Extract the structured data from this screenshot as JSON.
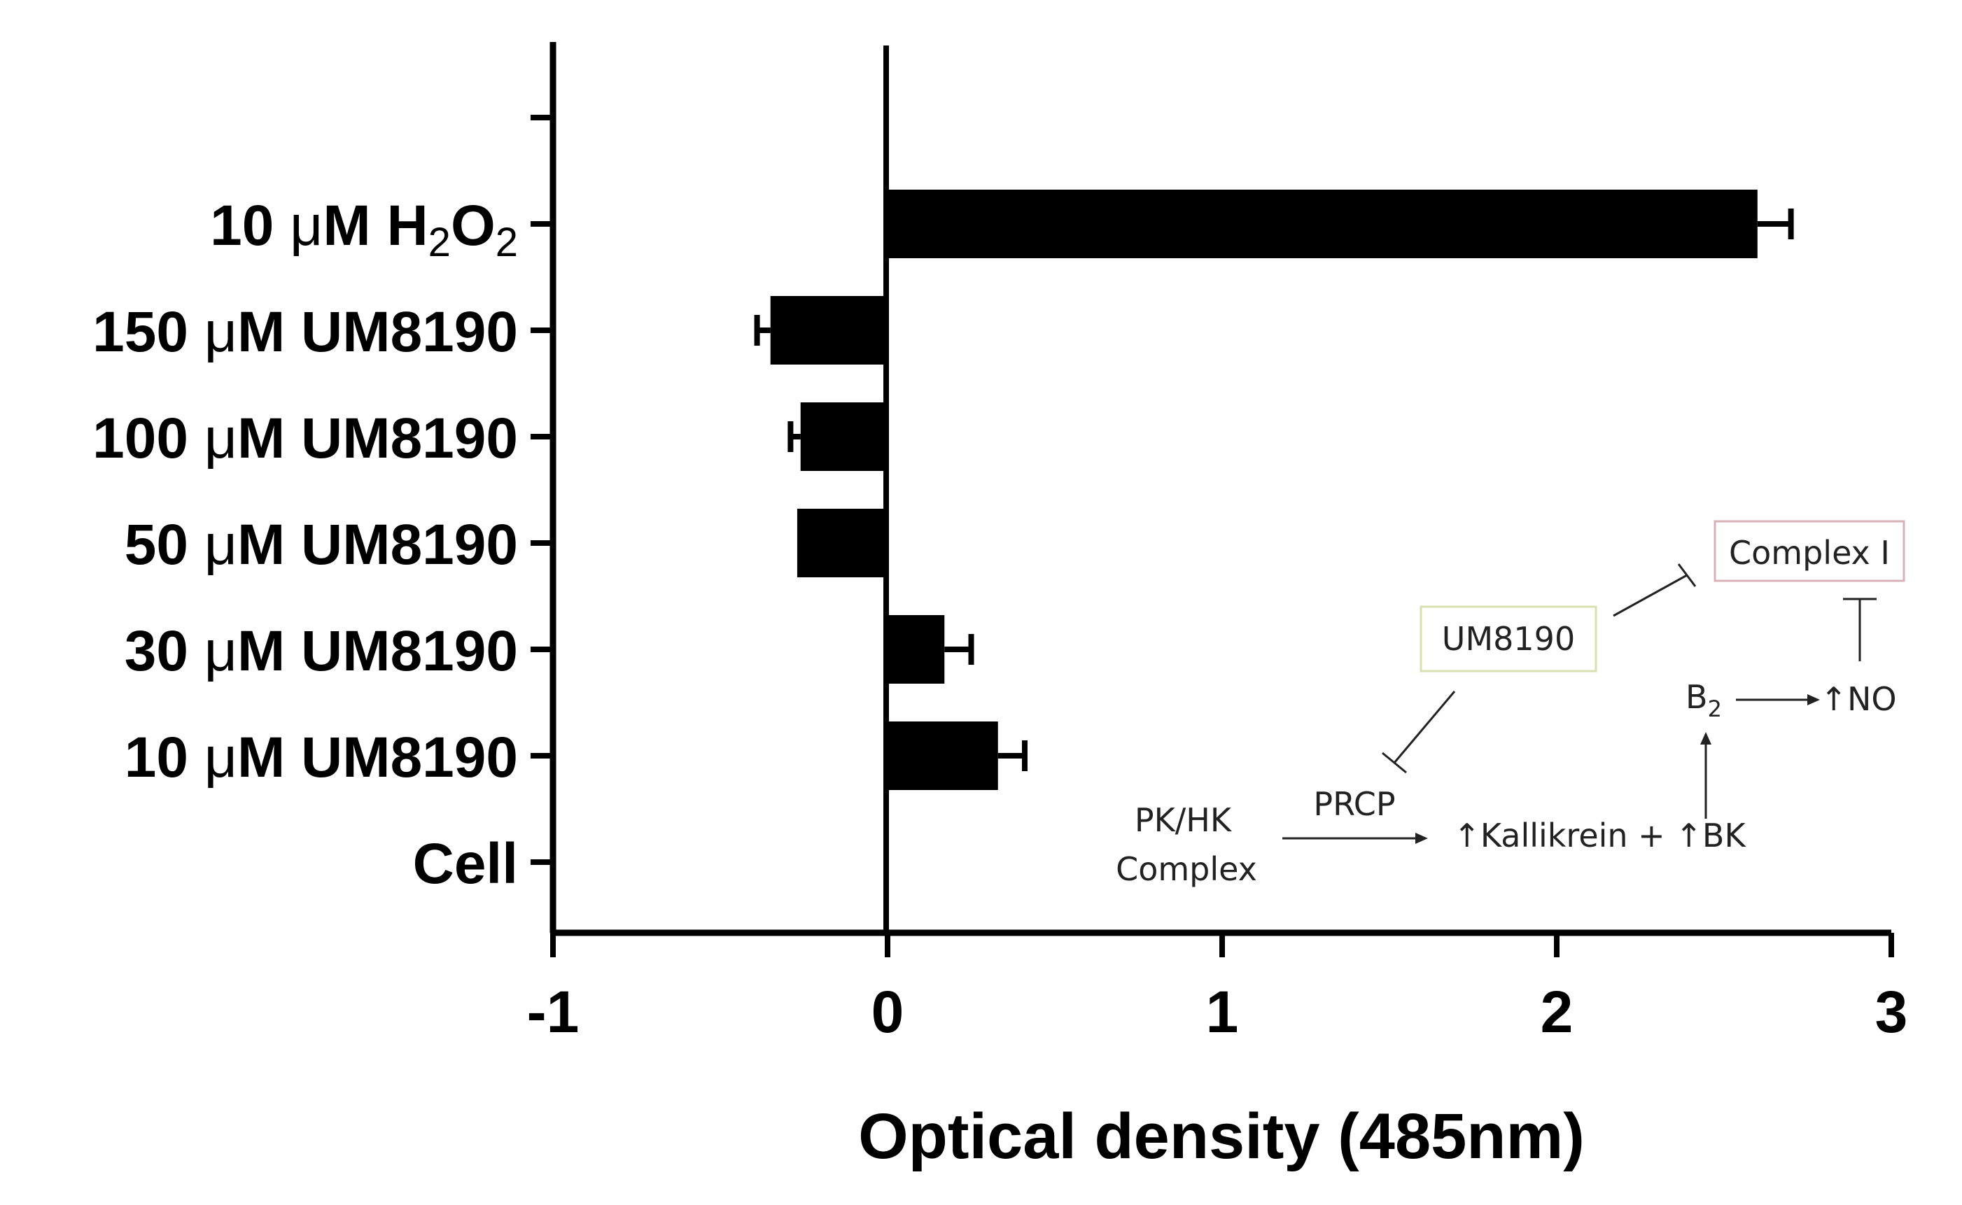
{
  "chart_data": {
    "type": "bar",
    "orientation": "horizontal",
    "xlabel": "Optical density (485nm)",
    "xlim": [
      -1,
      3
    ],
    "x_ticks": [
      "-1",
      "0",
      "1",
      "2",
      "3"
    ],
    "categories": [
      {
        "prefix": "10 ",
        "mu": "μ",
        "main": "M H",
        "sub1": "2",
        "mid": "O",
        "sub2": "2"
      },
      {
        "prefix": "150 ",
        "mu": "μ",
        "main": "M UM8190"
      },
      {
        "prefix": "100 ",
        "mu": "μ",
        "main": "M UM8190"
      },
      {
        "prefix": "50 ",
        "mu": "μ",
        "main": "M UM8190"
      },
      {
        "prefix": "30 ",
        "mu": "μ",
        "main": "M UM8190"
      },
      {
        "prefix": "10 ",
        "mu": "μ",
        "main": "M UM8190"
      },
      {
        "prefix": "Cell"
      }
    ],
    "values": [
      2.6,
      -0.35,
      -0.26,
      -0.27,
      0.17,
      0.33,
      0
    ],
    "errors": [
      0.1,
      0.04,
      0.03,
      0,
      0.08,
      0.08,
      0
    ],
    "bar_color": "#000000",
    "grid": false
  },
  "inset_diagram": {
    "box_um8190": "UM8190",
    "box_complex": "Complex I",
    "prcp": "PRCP",
    "pkhk_line1": "PK/HK",
    "pkhk_line2": "Complex",
    "kallikrein": "↑Kallikrein + ↑BK",
    "b2": "B",
    "b2_sub": "2",
    "no": "↑NO",
    "um8190_border": "#d8e0b0",
    "complex_border": "#d8b0b8"
  }
}
